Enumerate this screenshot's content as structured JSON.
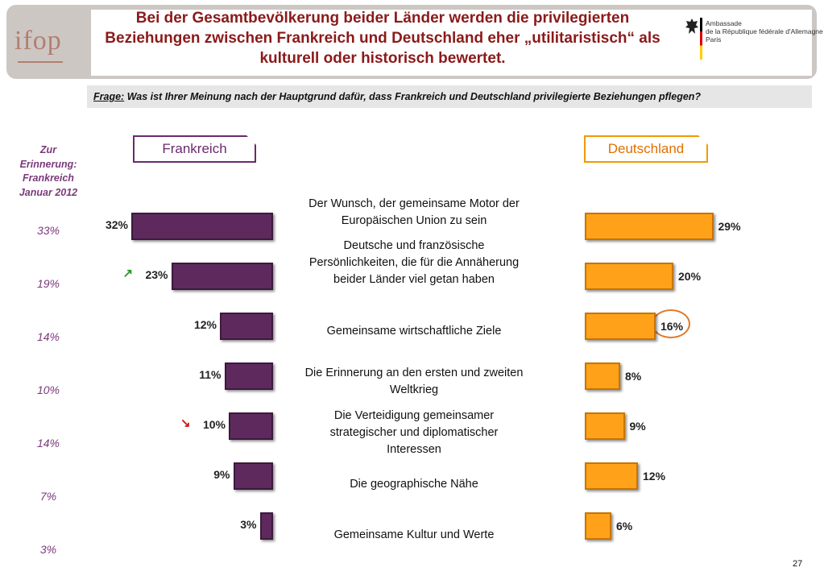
{
  "header": {
    "logo": "ifop",
    "title": "Bei der Gesamtbevölkerung beider Länder werden die privilegierten Beziehungen zwischen Frankreich und Deutschland eher „utilitaristisch“ als kulturell oder historisch bewertet.",
    "ambassade": "Ambassade\nde la République fédérale d'Allemagne\nParis"
  },
  "question": {
    "label": "Frage:",
    "text": "Was ist Ihrer Meinung nach der Hauptgrund dafür, dass Frankreich und Deutschland privilegierte Beziehungen pflegen?"
  },
  "tabs": {
    "left": "Frankreich",
    "right": "Deutschland"
  },
  "reminder_heading": "Zur\nErinnerung:\nFrankreich\nJanuar 2012",
  "page_number": "27",
  "colors": {
    "france_bar": "#5e2a5e",
    "germany_bar": "#ffa21a",
    "title": "#8b1a1a",
    "highlight_ring": "#e07a2a"
  },
  "chart_data": {
    "type": "bar",
    "orientation": "horizontal",
    "categories": [
      "Der Wunsch, der gemeinsame Motor der Europäischen Union zu sein",
      "Deutsche und französische Persönlichkeiten, die für die Annäherung beider Länder viel getan haben",
      "Gemeinsame wirtschaftliche Ziele",
      "Die Erinnerung an den ersten und zweiten Weltkrieg",
      "Die Verteidigung gemeinsamer strategischer und diplomatischer Interessen",
      "Die geographische Nähe",
      "Gemeinsame Kultur und Werte"
    ],
    "series": [
      {
        "name": "Frankreich",
        "values": [
          32,
          23,
          12,
          11,
          10,
          9,
          3
        ],
        "labels": [
          "32%",
          "23%",
          "12%",
          "11%",
          "10%",
          "9%",
          "3%"
        ]
      },
      {
        "name": "Deutschland",
        "values": [
          29,
          20,
          16,
          8,
          9,
          12,
          6
        ],
        "labels": [
          "29%",
          "20%",
          "16%",
          "8%",
          "9%",
          "12%",
          "6%"
        ]
      }
    ],
    "reminder_values": [
      "33%",
      "19%",
      "14%",
      "10%",
      "14%",
      "7%",
      "3%"
    ],
    "trend_marks": {
      "1": "up",
      "4": "down"
    },
    "highlighted": {
      "series": "Deutschland",
      "index": 2
    },
    "unit": "%"
  }
}
